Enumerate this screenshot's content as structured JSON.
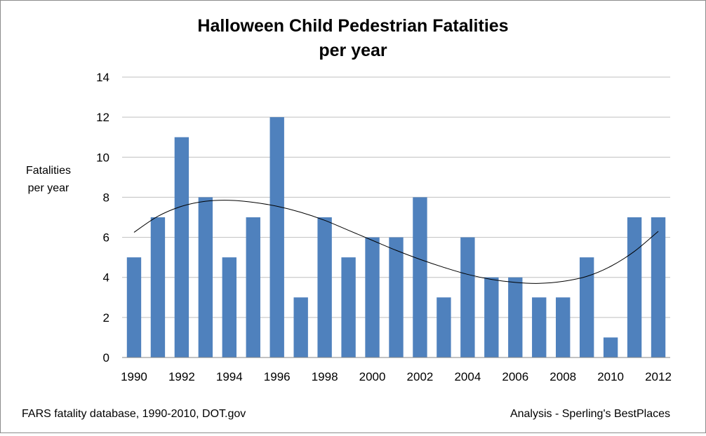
{
  "chart_data": {
    "type": "bar",
    "title_lines": [
      "Halloween Child Pedestrian Fatalities",
      "per year"
    ],
    "ylabel_lines": [
      "Fatalities",
      "per year"
    ],
    "xlabel": "",
    "categories": [
      "1990",
      "1991",
      "1992",
      "1993",
      "1994",
      "1995",
      "1996",
      "1997",
      "1998",
      "1999",
      "2000",
      "2001",
      "2002",
      "2003",
      "2004",
      "2005",
      "2006",
      "2007",
      "2008",
      "2009",
      "2010",
      "2011",
      "2012"
    ],
    "x_tick_labels": [
      "1990",
      "1992",
      "1994",
      "1996",
      "1998",
      "2000",
      "2002",
      "2004",
      "2006",
      "2008",
      "2010",
      "2012"
    ],
    "values": [
      5,
      7,
      11,
      8,
      5,
      7,
      12,
      3,
      7,
      5,
      6,
      6,
      8,
      3,
      6,
      4,
      4,
      3,
      3,
      5,
      1,
      7,
      7
    ],
    "ylim": [
      0,
      14
    ],
    "y_ticks": [
      "0",
      "2",
      "4",
      "6",
      "8",
      "10",
      "12",
      "14"
    ],
    "grid": true,
    "trendline": {
      "type": "polynomial",
      "x": [
        "1990",
        "1991",
        "1992",
        "1993",
        "1994",
        "1995",
        "1996",
        "1997",
        "1998",
        "1999",
        "2000",
        "2001",
        "2002",
        "2003",
        "2004",
        "2005",
        "2006",
        "2007",
        "2008",
        "2009",
        "2010",
        "2011",
        "2012"
      ],
      "y": [
        6.25,
        7.05,
        7.55,
        7.8,
        7.85,
        7.75,
        7.55,
        7.25,
        6.85,
        6.35,
        5.85,
        5.35,
        4.9,
        4.5,
        4.15,
        3.9,
        3.75,
        3.7,
        3.8,
        4.05,
        4.55,
        5.3,
        6.3
      ]
    },
    "colors": {
      "bar": "#4f81bd",
      "trendline": "#000000",
      "grid": "#bfbfbf"
    }
  },
  "footer": {
    "source": "FARS fatality database, 1990-2010, DOT.gov",
    "analysis": "Analysis - Sperling's BestPlaces"
  }
}
